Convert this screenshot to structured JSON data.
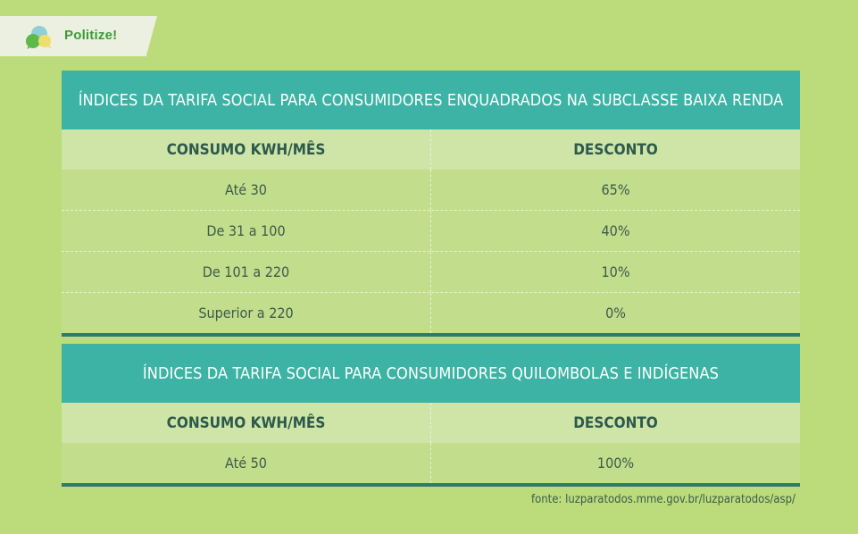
{
  "brand": {
    "name": "Politize!"
  },
  "tables": [
    {
      "title": "ÍNDICES DA TARIFA SOCIAL PARA CONSUMIDORES ENQUADRADOS NA SUBCLASSE BAIXA RENDA",
      "headers": [
        "CONSUMO KWH/MÊS",
        "DESCONTO"
      ],
      "rows": [
        [
          "Até 30",
          "65%"
        ],
        [
          "De 31 a 100",
          "40%"
        ],
        [
          "De 101 a 220",
          "10%"
        ],
        [
          "Superior a 220",
          "0%"
        ]
      ]
    },
    {
      "title": "ÍNDICES DA TARIFA SOCIAL PARA CONSUMIDORES QUILOMBOLAS E INDÍGENAS",
      "headers": [
        "CONSUMO KWH/MÊS",
        "DESCONTO"
      ],
      "rows": [
        [
          "Até 50",
          "100%"
        ]
      ]
    }
  ],
  "source": "fonte: luzparatodos.mme.gov.br/luzparatodos/asp/",
  "colors": {
    "background": "#bcdb7a",
    "title_bar": "#3cb3a4",
    "header_row": "#cfe4a7",
    "body_row": "#c2dd8b",
    "bottom_rule": "#2f7a6c",
    "brand_green": "#3d9a37"
  }
}
